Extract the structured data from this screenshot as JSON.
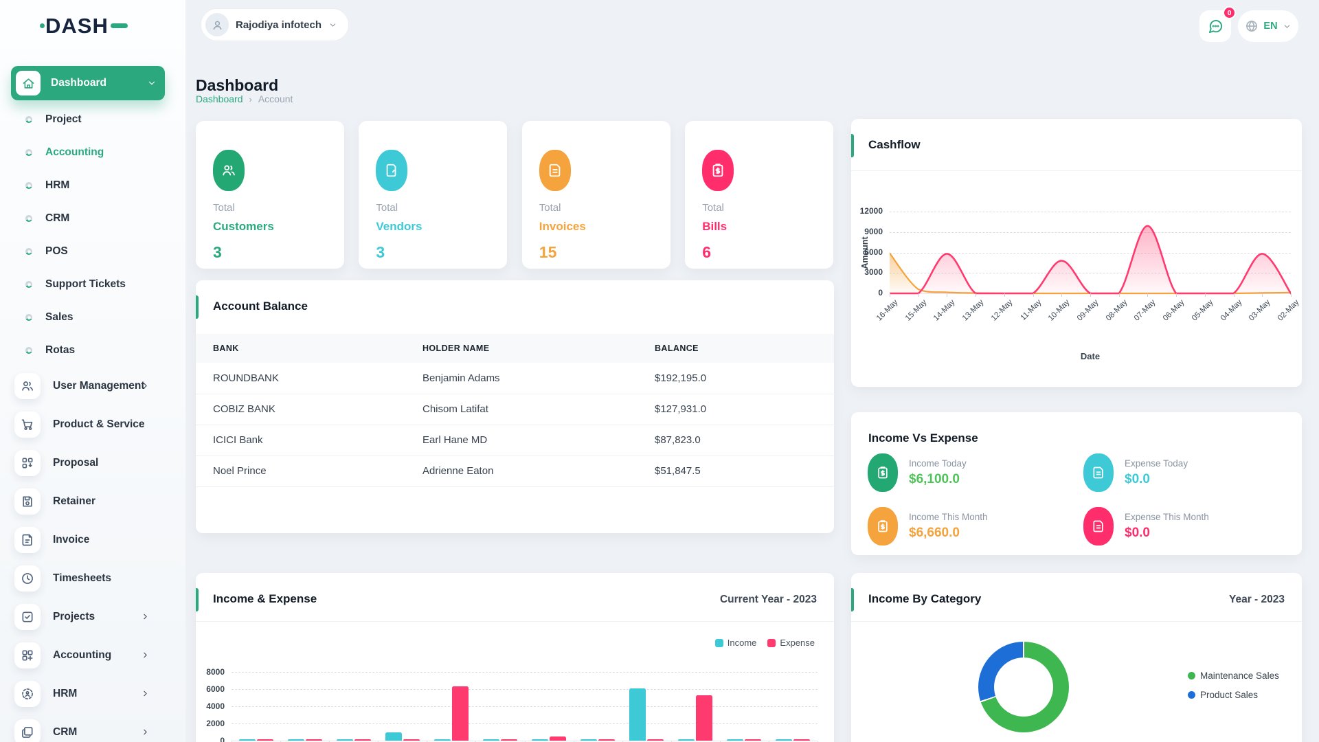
{
  "header": {
    "logo_text": "DASH",
    "company_name": "Rajodiya infotech",
    "notification_badge": "0",
    "language": "EN"
  },
  "page": {
    "title": "Dashboard",
    "breadcrumb": {
      "link": "Dashboard",
      "separator": "›",
      "current": "Account"
    }
  },
  "sidebar": {
    "active_item": {
      "label": "Dashboard",
      "icon": "home-icon"
    },
    "sub_items": [
      {
        "label": "Project",
        "active": false
      },
      {
        "label": "Accounting",
        "active": true
      },
      {
        "label": "HRM",
        "active": false
      },
      {
        "label": "CRM",
        "active": false
      },
      {
        "label": "POS",
        "active": false
      },
      {
        "label": "Support Tickets",
        "active": false
      },
      {
        "label": "Sales",
        "active": false
      },
      {
        "label": "Rotas",
        "active": false
      }
    ],
    "menu_items": [
      {
        "label": "User Management",
        "icon": "users-icon",
        "chevron": true
      },
      {
        "label": "Product & Service",
        "icon": "cart-icon",
        "chevron": false
      },
      {
        "label": "Proposal",
        "icon": "proposal-icon",
        "chevron": false
      },
      {
        "label": "Retainer",
        "icon": "save-icon",
        "chevron": false
      },
      {
        "label": "Invoice",
        "icon": "invoice-icon",
        "chevron": false
      },
      {
        "label": "Timesheets",
        "icon": "clock-icon",
        "chevron": false
      },
      {
        "label": "Projects",
        "icon": "check-square-icon",
        "chevron": true
      },
      {
        "label": "Accounting",
        "icon": "grid-plus-icon",
        "chevron": true
      },
      {
        "label": "HRM",
        "icon": "person-target-icon",
        "chevron": true
      },
      {
        "label": "CRM",
        "icon": "frames-icon",
        "chevron": true
      }
    ]
  },
  "stats": [
    {
      "top": "Total",
      "label": "Customers",
      "value": "3",
      "color": "#2ca87f",
      "icon_bg": "#24a873",
      "icon": "users-icon"
    },
    {
      "top": "Total",
      "label": "Vendors",
      "value": "3",
      "color": "#3ec9d6",
      "icon_bg": "#3ec9d6",
      "icon": "file-tab-icon"
    },
    {
      "top": "Total",
      "label": "Invoices",
      "value": "15",
      "color": "#f5a33c",
      "icon_bg": "#f5a33c",
      "icon": "file-lines-icon"
    },
    {
      "top": "Total",
      "label": "Bills",
      "value": "6",
      "color": "#ff2d6b",
      "icon_bg": "#ff2d6b",
      "icon": "clipboard-dollar-icon"
    }
  ],
  "account_balance": {
    "title": "Account Balance",
    "columns": [
      "BANK",
      "HOLDER NAME",
      "BALANCE"
    ],
    "rows": [
      [
        "ROUNDBANK",
        "Benjamin Adams",
        "$192,195.0"
      ],
      [
        "COBIZ BANK",
        "Chisom Latifat",
        "$127,931.0"
      ],
      [
        "ICICI Bank",
        "Earl Hane MD",
        "$87,823.0"
      ],
      [
        "Noel Prince",
        "Adrienne Eaton",
        "$51,847.5"
      ]
    ]
  },
  "income_vs_expense": {
    "title": "Income Vs Expense",
    "items": [
      {
        "label": "Income Today",
        "value": "$6,100.0",
        "color": "#4fc45a",
        "icon_bg": "#24a873",
        "icon": "clipboard-dollar-icon"
      },
      {
        "label": "Expense Today",
        "value": "$0.0",
        "color": "#3ec9d6",
        "icon_bg": "#3ec9d6",
        "icon": "file-lines-icon"
      },
      {
        "label": "Income This Month",
        "value": "$6,660.0",
        "color": "#f5a33c",
        "icon_bg": "#f5a33c",
        "icon": "clipboard-dollar-icon"
      },
      {
        "label": "Expense This Month",
        "value": "$0.0",
        "color": "#ff2d6b",
        "icon_bg": "#ff2d6b",
        "icon": "file-lines-icon"
      }
    ]
  },
  "chart_data": [
    {
      "id": "cashflow",
      "type": "line",
      "title": "Cashflow",
      "xlabel": "Date",
      "ylabel": "Amount",
      "x": [
        "16-May",
        "15-May",
        "14-May",
        "13-May",
        "12-May",
        "11-May",
        "10-May",
        "09-May",
        "08-May",
        "07-May",
        "06-May",
        "05-May",
        "04-May",
        "03-May",
        "02-May"
      ],
      "ylim": [
        0,
        12000
      ],
      "yticks": [
        12000,
        9000,
        6000,
        3000,
        0
      ],
      "grid": "horizontal-dashed",
      "series": [
        {
          "name": "orange-series",
          "color": "#f5a33c",
          "values": [
            5900,
            600,
            150,
            50,
            0,
            0,
            0,
            0,
            0,
            0,
            0,
            0,
            0,
            60,
            120
          ]
        },
        {
          "name": "pink-series",
          "color": "#ff3a6e",
          "values": [
            0,
            0,
            5800,
            0,
            0,
            0,
            4800,
            0,
            0,
            9900,
            0,
            0,
            0,
            5800,
            0
          ]
        }
      ]
    },
    {
      "id": "income_expense",
      "type": "bar",
      "title": "Income & Expense",
      "period": "Current Year - 2023",
      "categories": [
        "",
        "",
        "",
        "",
        "",
        "",
        "",
        "",
        "",
        "",
        "",
        ""
      ],
      "ylim": [
        0,
        8000
      ],
      "yticks": [
        8000,
        6000,
        4000,
        2000,
        0
      ],
      "legend_position": "top-right",
      "series": [
        {
          "name": "Income",
          "color": "#3ec9d6",
          "values": [
            200,
            120,
            120,
            950,
            120,
            120,
            180,
            120,
            6100,
            120,
            120,
            150
          ]
        },
        {
          "name": "Expense",
          "color": "#ff3a6e",
          "values": [
            120,
            120,
            120,
            120,
            6300,
            120,
            450,
            120,
            120,
            5300,
            120,
            120
          ]
        }
      ]
    },
    {
      "id": "income_by_category",
      "type": "pie",
      "donut": true,
      "title": "Income By Category",
      "period": "Year - 2023",
      "slices": [
        {
          "name": "Maintenance Sales",
          "color": "#3eb750",
          "percent": 70
        },
        {
          "name": "Product Sales",
          "color": "#1d6ed6",
          "percent": 30
        }
      ]
    }
  ]
}
